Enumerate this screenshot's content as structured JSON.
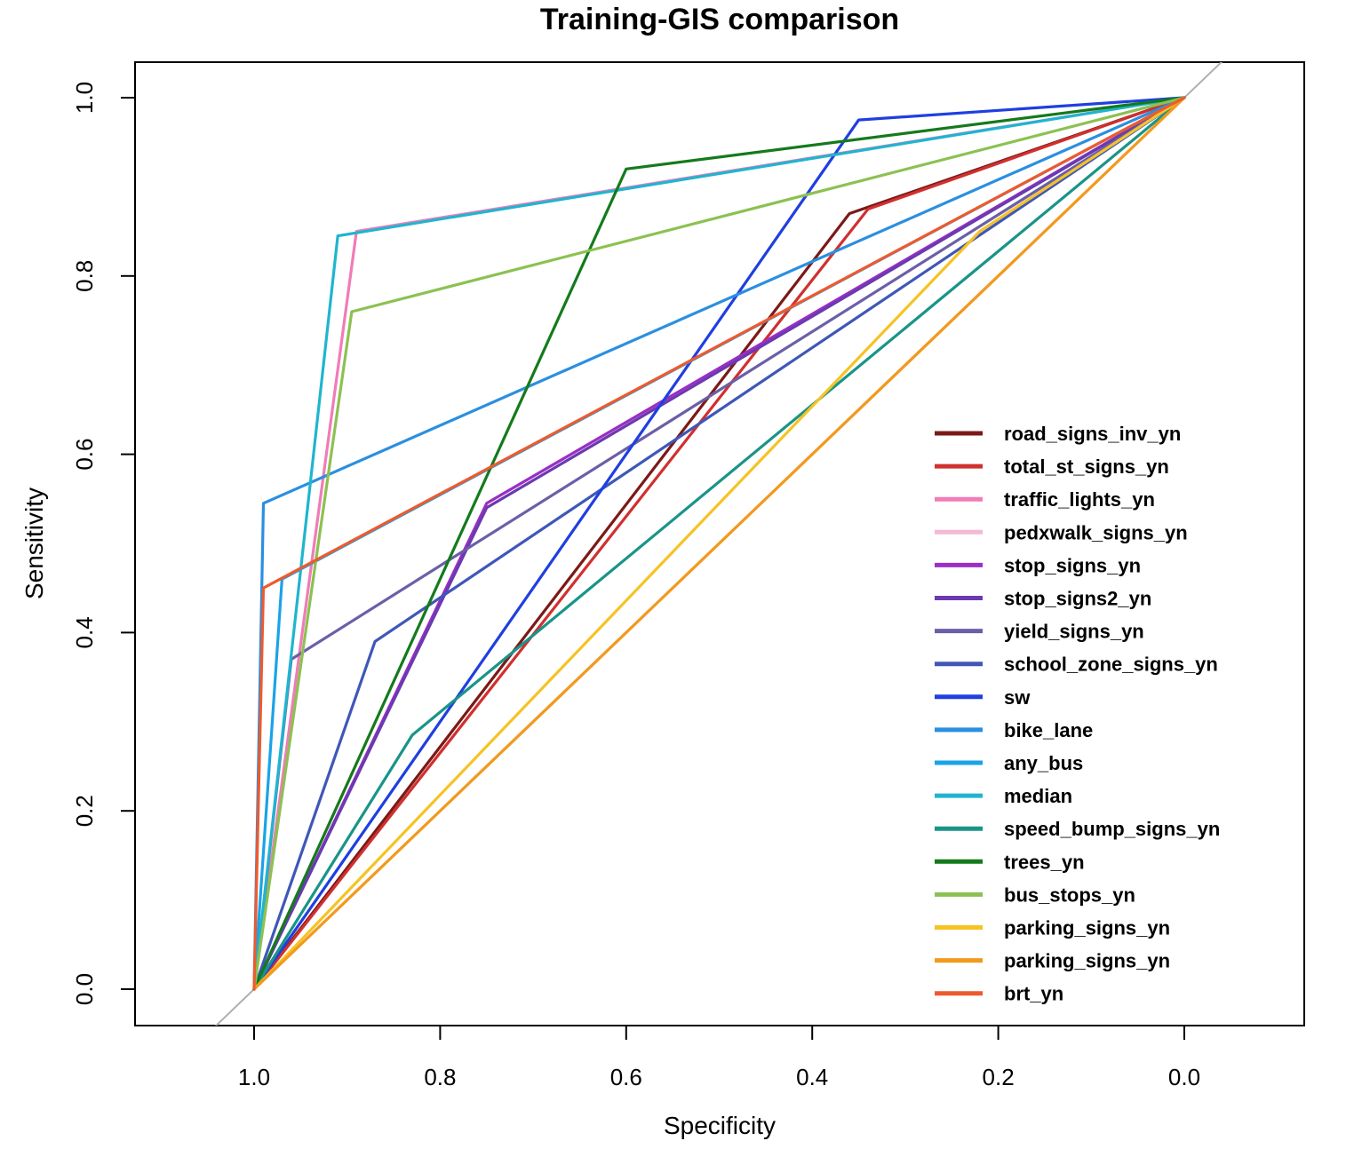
{
  "chart_data": {
    "type": "line",
    "title": "Training-GIS comparison",
    "xlabel": "Specificity",
    "ylabel": "Sensitivity",
    "xlim": [
      1.0,
      0.0
    ],
    "ylim": [
      0.0,
      1.0
    ],
    "x_reversed": true,
    "x_ticks": [
      1.0,
      0.8,
      0.6,
      0.4,
      0.2,
      0.0
    ],
    "x_tick_labels": [
      "1.0",
      "0.8",
      "0.6",
      "0.4",
      "0.2",
      "0.0"
    ],
    "y_ticks": [
      0.0,
      0.2,
      0.4,
      0.6,
      0.8,
      1.0
    ],
    "y_tick_labels": [
      "0.0",
      "0.2",
      "0.4",
      "0.6",
      "0.8",
      "1.0"
    ],
    "grid": false,
    "legend_position": "right",
    "reference_line": {
      "from": [
        1,
        0
      ],
      "to": [
        0,
        1
      ],
      "color": "#b0b0b0"
    },
    "series": [
      {
        "name": "road_signs_inv_yn",
        "color": "#7b1a17",
        "points": [
          [
            1.0,
            0.0
          ],
          [
            0.36,
            0.87
          ],
          [
            0.0,
            1.0
          ]
        ]
      },
      {
        "name": "total_st_signs_yn",
        "color": "#d0302f",
        "points": [
          [
            1.0,
            0.0
          ],
          [
            0.34,
            0.875
          ],
          [
            0.0,
            1.0
          ]
        ]
      },
      {
        "name": "traffic_lights_yn",
        "color": "#f07cb8",
        "points": [
          [
            1.0,
            0.0
          ],
          [
            0.89,
            0.85
          ],
          [
            0.0,
            1.0
          ]
        ]
      },
      {
        "name": "pedxwalk_signs_yn",
        "color": "#f4b9d5",
        "points": [
          [
            1.0,
            0.0
          ],
          [
            0.0,
            1.0
          ]
        ]
      },
      {
        "name": "stop_signs_yn",
        "color": "#9b2ec4",
        "points": [
          [
            1.0,
            0.0
          ],
          [
            0.75,
            0.545
          ],
          [
            0.0,
            1.0
          ]
        ]
      },
      {
        "name": "stop_signs2_yn",
        "color": "#6a3ab0",
        "points": [
          [
            1.0,
            0.0
          ],
          [
            0.75,
            0.54
          ],
          [
            0.0,
            1.0
          ]
        ]
      },
      {
        "name": "yield_signs_yn",
        "color": "#6b5fa8",
        "points": [
          [
            1.0,
            0.0
          ],
          [
            0.96,
            0.37
          ],
          [
            0.0,
            1.0
          ]
        ]
      },
      {
        "name": "school_zone_signs_yn",
        "color": "#3f57b8",
        "points": [
          [
            1.0,
            0.0
          ],
          [
            0.87,
            0.39
          ],
          [
            0.0,
            1.0
          ]
        ]
      },
      {
        "name": "sw",
        "color": "#1f3fe0",
        "points": [
          [
            1.0,
            0.0
          ],
          [
            0.35,
            0.975
          ],
          [
            0.0,
            1.0
          ]
        ]
      },
      {
        "name": "bike_lane",
        "color": "#2b8fe0",
        "points": [
          [
            1.0,
            0.0
          ],
          [
            0.99,
            0.545
          ],
          [
            0.0,
            1.0
          ]
        ]
      },
      {
        "name": "any_bus",
        "color": "#1aa3e8",
        "points": [
          [
            1.0,
            0.0
          ],
          [
            0.97,
            0.46
          ],
          [
            0.0,
            1.0
          ]
        ]
      },
      {
        "name": "median",
        "color": "#1fb5cf",
        "points": [
          [
            1.0,
            0.0
          ],
          [
            0.91,
            0.845
          ],
          [
            0.0,
            1.0
          ]
        ]
      },
      {
        "name": "speed_bump_signs_yn",
        "color": "#1a9488",
        "points": [
          [
            1.0,
            0.0
          ],
          [
            0.83,
            0.285
          ],
          [
            0.0,
            1.0
          ]
        ]
      },
      {
        "name": "trees_yn",
        "color": "#147a1c",
        "points": [
          [
            1.0,
            0.0
          ],
          [
            0.6,
            0.92
          ],
          [
            0.0,
            1.0
          ]
        ]
      },
      {
        "name": "bus_stops_yn",
        "color": "#8cc152",
        "points": [
          [
            1.0,
            0.0
          ],
          [
            0.895,
            0.76
          ],
          [
            0.0,
            1.0
          ]
        ]
      },
      {
        "name": "parking_signs_yn",
        "color": "#f6c324",
        "points": [
          [
            1.0,
            0.0
          ],
          [
            0.22,
            0.85
          ],
          [
            0.0,
            1.0
          ]
        ]
      },
      {
        "name": "parking_signs_yn",
        "color": "#f29a1c",
        "points": [
          [
            1.0,
            0.0
          ],
          [
            0.0,
            1.0
          ]
        ]
      },
      {
        "name": "brt_yn",
        "color": "#ee5a2e",
        "points": [
          [
            1.0,
            0.0
          ],
          [
            0.99,
            0.45
          ],
          [
            0.0,
            1.0
          ]
        ]
      }
    ]
  }
}
